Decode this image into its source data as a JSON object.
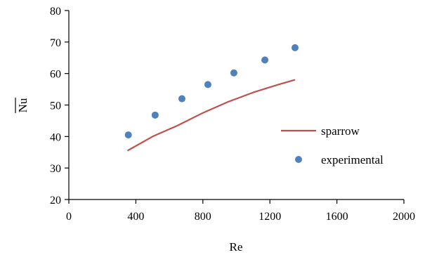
{
  "chart_data": {
    "type": "scatter",
    "xlabel": "Re",
    "ylabel": "Nu",
    "ylabel_overline": true,
    "xlim": [
      0,
      2000
    ],
    "ylim": [
      20,
      80
    ],
    "x_ticks": [
      0,
      400,
      800,
      1200,
      1600,
      2000
    ],
    "y_ticks": [
      20,
      30,
      40,
      50,
      60,
      70,
      80
    ],
    "grid": false,
    "legend_position": "right",
    "series": [
      {
        "name": "sparrow",
        "kind": "line",
        "color": "#C0504D",
        "points": [
          [
            350,
            35.5
          ],
          [
            500,
            40
          ],
          [
            650,
            43.5
          ],
          [
            800,
            47.5
          ],
          [
            950,
            51
          ],
          [
            1100,
            54
          ],
          [
            1250,
            56.5
          ],
          [
            1350,
            58
          ]
        ]
      },
      {
        "name": "experimental",
        "kind": "scatter",
        "color": "#4F81BD",
        "points": [
          [
            355,
            40.5
          ],
          [
            515,
            46.8
          ],
          [
            675,
            52
          ],
          [
            830,
            56.5
          ],
          [
            985,
            60.2
          ],
          [
            1170,
            64.3
          ],
          [
            1350,
            68.2
          ]
        ]
      }
    ]
  }
}
